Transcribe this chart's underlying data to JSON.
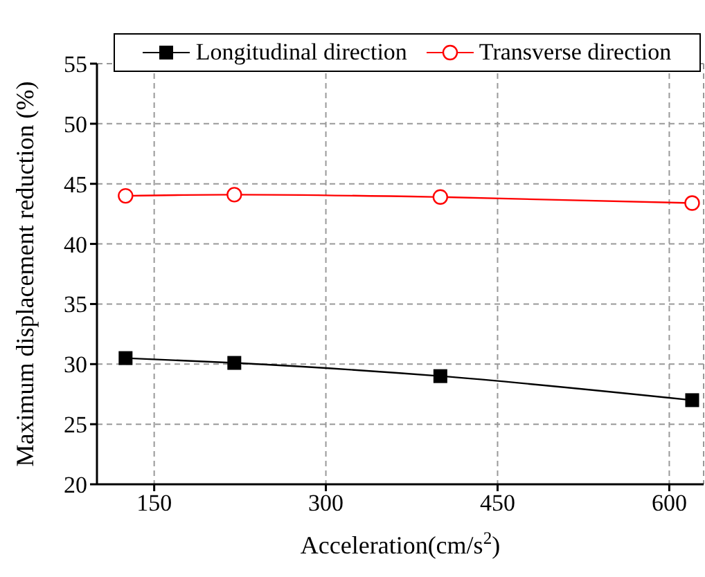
{
  "chart_data": {
    "type": "line",
    "xlabel": "Acceleration(cm/s$^{2}$)",
    "ylabel": "Maximum displacement reduction (%)",
    "x": [
      125,
      220,
      400,
      620
    ],
    "series": [
      {
        "name": "Longitudinal direction",
        "color": "#000000",
        "marker": "square",
        "values": [
          30.5,
          30.1,
          29,
          27
        ]
      },
      {
        "name": "Transverse direction",
        "color": "#ff0000",
        "marker": "circle",
        "values": [
          44,
          44.1,
          43.9,
          43.4
        ]
      }
    ],
    "xlim": [
      100,
      630
    ],
    "xticks": [
      150,
      300,
      450,
      600
    ],
    "ylim": [
      20,
      55
    ],
    "yticks": [
      20,
      25,
      30,
      35,
      40,
      45,
      50,
      55
    ],
    "grid": true,
    "legend": "top",
    "line_style": "solid"
  }
}
